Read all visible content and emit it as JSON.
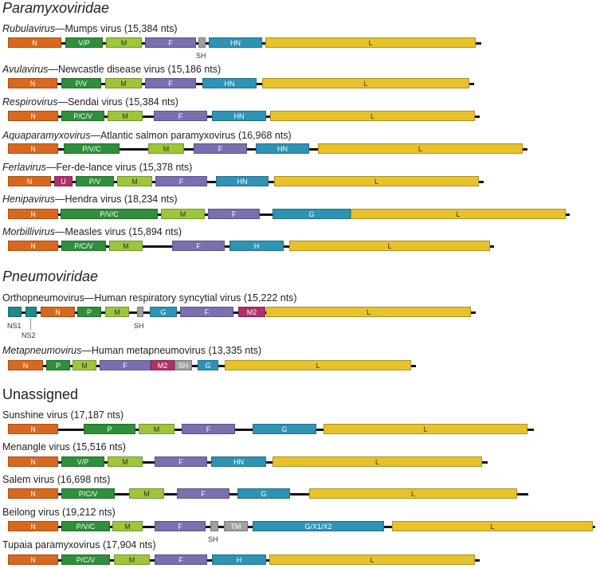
{
  "colors": {
    "N": "#d9681f",
    "P": "#2f8f3a",
    "M": "#9dc63b",
    "F": "#7a6fb0",
    "HN": "#2e93b4",
    "L": "#e8c22a",
    "SH": "#a0a0a0",
    "M2": "#b0306a",
    "U": "#b0306a",
    "NS": "#1f8a8a",
    "backbone": "#111111"
  },
  "sections": {
    "paramyxo": "Paramyxoviridae",
    "pneumo": "Pneumoviridae",
    "unassigned": "Unassigned"
  },
  "viruses": {
    "rubula": {
      "genus": "Rubulavirus",
      "rest": "—Mumps virus  (15,384 nts)"
    },
    "avula": {
      "genus": "Avulavirus",
      "rest": "—Newcastle disease virus  (15,186 nts)"
    },
    "respiro": {
      "genus": "Respirovirus",
      "rest": "—Sendai virus  (15,384 nts)"
    },
    "aquapara": {
      "genus": "Aquaparamyxovirus",
      "rest": "—Atlantic salmon paramyxovirus  (16,968 nts)"
    },
    "ferla": {
      "genus": "Ferlavirus",
      "rest": "—Fer-de-lance virus  (15,378 nts)"
    },
    "henipa": {
      "genus": "Henipavirus",
      "rest": "—Hendra virus  (18,234 nts)"
    },
    "morbilli": {
      "genus": "Morbillivirus",
      "rest": "—Measles virus  (15,894 nts)"
    },
    "orthopneumo": {
      "genus": "",
      "rest": "Orthopneumovirus—Human respiratory syncytial virus  (15,222 nts)"
    },
    "metapneumo": {
      "genus": "Metapneumovirus",
      "rest": "—Human metapneumovirus  (13,335 nts)"
    },
    "sunshine": {
      "genus": "",
      "rest": "Sunshine virus  (17,187 nts)"
    },
    "menangle": {
      "genus": "",
      "rest": "Menangle virus  (15,516 nts)"
    },
    "salem": {
      "genus": "",
      "rest": "Salem virus  (16,698 nts)"
    },
    "beilong": {
      "genus": "",
      "rest": "Beilong virus  (19,212 nts)"
    },
    "tupaia": {
      "genus": "",
      "rest": "Tupaia paramyxovirus  (17,904 nts)"
    }
  },
  "gene_labels": {
    "N": "N",
    "VP": "V/P",
    "PV": "P/V",
    "PCV": "P/C/V",
    "PVC": "P/V/C",
    "P": "P",
    "M": "M",
    "F": "F",
    "SH": "SH",
    "HN": "HN",
    "H": "H",
    "G": "G",
    "L": "L",
    "U": "U",
    "M2": "M2",
    "TM": "TM",
    "GX": "G/X1/X2",
    "NS1": "NS1",
    "NS2": "NS2"
  }
}
